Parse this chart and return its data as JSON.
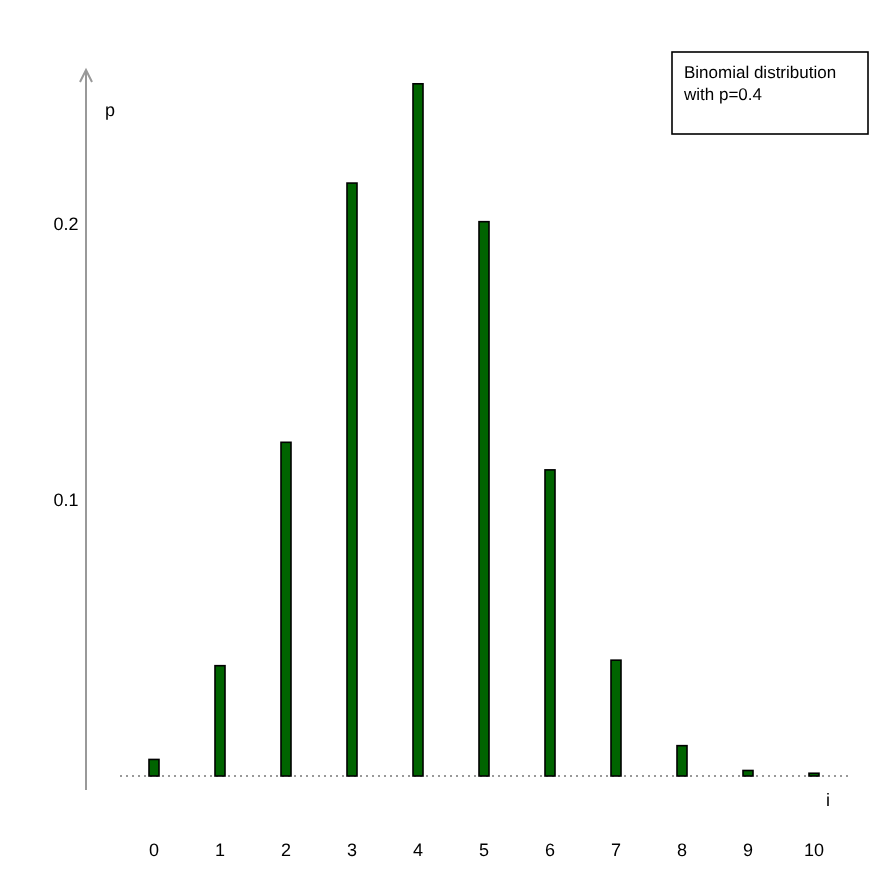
{
  "chart_data": {
    "type": "bar",
    "categories": [
      "0",
      "1",
      "2",
      "3",
      "4",
      "5",
      "6",
      "7",
      "8",
      "9",
      "10"
    ],
    "values": [
      0.006,
      0.04,
      0.121,
      0.215,
      0.251,
      0.201,
      0.111,
      0.042,
      0.011,
      0.002,
      0.001
    ],
    "color": "#006400",
    "ylim": [
      0,
      0.256
    ],
    "yticks": [
      0.1,
      0.2
    ],
    "xlabel": "i",
    "ylabel": "p",
    "grid": false,
    "annotations": [
      "Binomial distribution with p=0.4"
    ]
  }
}
